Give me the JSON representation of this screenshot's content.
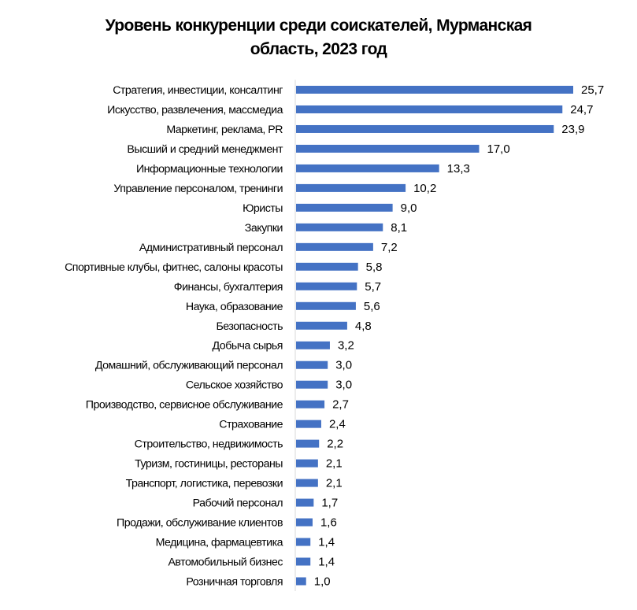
{
  "chart_data": {
    "type": "bar",
    "orientation": "horizontal",
    "title_lines": [
      "Уровень конкуренции среди соискателей, Мурманская",
      "область, 2023 год"
    ],
    "xlabel": "",
    "ylabel": "",
    "grid": false,
    "legend": "none",
    "bar_color": "#4472C4",
    "xlim": [
      0,
      27
    ],
    "categories": [
      "Стратегия, инвестиции, консалтинг",
      "Искусство, развлечения, массмедиа",
      "Маркетинг, реклама, PR",
      "Высший и средний менеджмент",
      "Информационные технологии",
      "Управление персоналом, тренинги",
      "Юристы",
      "Закупки",
      "Административный персонал",
      "Спортивные клубы, фитнес, салоны красоты",
      "Финансы, бухгалтерия",
      "Наука, образование",
      "Безопасность",
      "Добыча сырья",
      "Домашний, обслуживающий персонал",
      "Сельское хозяйство",
      "Производство, сервисное обслуживание",
      "Страхование",
      "Строительство, недвижимость",
      "Туризм, гостиницы, рестораны",
      "Транспорт, логистика, перевозки",
      "Рабочий персонал",
      "Продажи, обслуживание клиентов",
      "Медицина, фармацевтика",
      "Автомобильный бизнес",
      "Розничная торговля"
    ],
    "values": [
      25.7,
      24.7,
      23.9,
      17.0,
      13.3,
      10.2,
      9.0,
      8.1,
      7.2,
      5.8,
      5.7,
      5.6,
      4.8,
      3.2,
      3.0,
      3.0,
      2.7,
      2.4,
      2.2,
      2.1,
      2.1,
      1.7,
      1.6,
      1.4,
      1.4,
      1.0
    ],
    "value_labels": [
      "25,7",
      "24,7",
      "23,9",
      "17,0",
      "13,3",
      "10,2",
      "9,0",
      "8,1",
      "7,2",
      "5,8",
      "5,7",
      "5,6",
      "4,8",
      "3,2",
      "3,0",
      "3,0",
      "2,7",
      "2,4",
      "2,2",
      "2,1",
      "2,1",
      "1,7",
      "1,6",
      "1,4",
      "1,4",
      "1,0"
    ]
  }
}
